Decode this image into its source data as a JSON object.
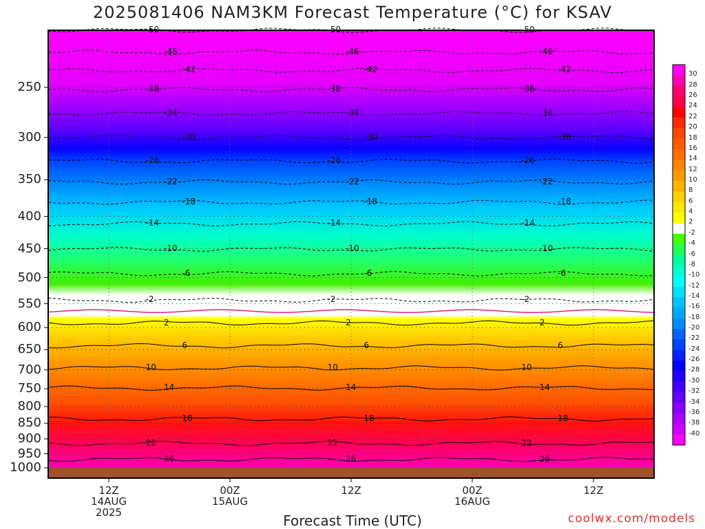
{
  "title": "2025081406 NAM3KM Forecast Temperature (°C) for KSAV",
  "xlabel": "Forecast Time (UTC)",
  "credit": "coolwx.com/models",
  "chart_data": {
    "type": "heatmap",
    "title": "2025081406 NAM3KM Forecast Temperature (°C) for KSAV",
    "xlabel": "Forecast Time (UTC)",
    "ylabel": "",
    "x_ticks": [
      {
        "lines": [
          "12Z",
          "14AUG",
          "2025"
        ]
      },
      {
        "lines": [
          "00Z",
          "15AUG"
        ]
      },
      {
        "lines": [
          "12Z"
        ]
      },
      {
        "lines": [
          "00Z",
          "16AUG"
        ]
      },
      {
        "lines": [
          "12Z"
        ]
      }
    ],
    "y_ticks": [
      "250",
      "300",
      "350",
      "400",
      "450",
      "500",
      "550",
      "600",
      "650",
      "700",
      "750",
      "800",
      "850",
      "900",
      "950",
      "1000"
    ],
    "y_tick_values": [
      250,
      300,
      350,
      400,
      450,
      500,
      550,
      600,
      650,
      700,
      750,
      800,
      850,
      900,
      950,
      1000
    ],
    "colorbar_labels": [
      "30",
      "28",
      "26",
      "24",
      "22",
      "20",
      "18",
      "16",
      "14",
      "12",
      "10",
      "8",
      "6",
      "4",
      "2",
      "-2",
      "-4",
      "-6",
      "-8",
      "-10",
      "-12",
      "-14",
      "-16",
      "-18",
      "-20",
      "-22",
      "-24",
      "-26",
      "-28",
      "-30",
      "-32",
      "-34",
      "-36",
      "-38",
      "-40"
    ],
    "colorbar_colors": [
      "#ff00ff",
      "#ff00b4",
      "#ff0070",
      "#ff0048",
      "#ff0000",
      "#ff2a00",
      "#ff4400",
      "#ff5a00",
      "#ff6e00",
      "#ff8400",
      "#ff9c00",
      "#ffb400",
      "#ffd000",
      "#ffe800",
      "#ffff00",
      "#ffffff",
      "#44ff00",
      "#22ff55",
      "#00ff99",
      "#00ffcc",
      "#00ffff",
      "#00e0ff",
      "#00c4ff",
      "#00a8ff",
      "#008cff",
      "#0066ff",
      "#0044ff",
      "#0022ff",
      "#0000ff",
      "#2200ff",
      "#4400ff",
      "#6600ff",
      "#8800ff",
      "#aa00ff",
      "#d000ff",
      "#ff00ff"
    ],
    "contours": [
      {
        "label": "-50",
        "p": 203
      },
      {
        "label": "-46",
        "p": 220
      },
      {
        "label": "-42",
        "p": 235
      },
      {
        "label": "-38",
        "p": 252
      },
      {
        "label": "-34",
        "p": 275
      },
      {
        "label": "-30",
        "p": 300
      },
      {
        "label": "-26",
        "p": 327
      },
      {
        "label": "-22",
        "p": 353
      },
      {
        "label": "-18",
        "p": 380
      },
      {
        "label": "-14",
        "p": 411
      },
      {
        "label": "-10",
        "p": 451
      },
      {
        "label": "-6",
        "p": 493
      },
      {
        "label": "-2",
        "p": 543
      },
      {
        "label": "2",
        "p": 590
      },
      {
        "label": "6",
        "p": 641
      },
      {
        "label": "10",
        "p": 695
      },
      {
        "label": "14",
        "p": 748
      },
      {
        "label": "18",
        "p": 837
      },
      {
        "label": "22",
        "p": 915
      },
      {
        "label": "26",
        "p": 970
      }
    ]
  }
}
